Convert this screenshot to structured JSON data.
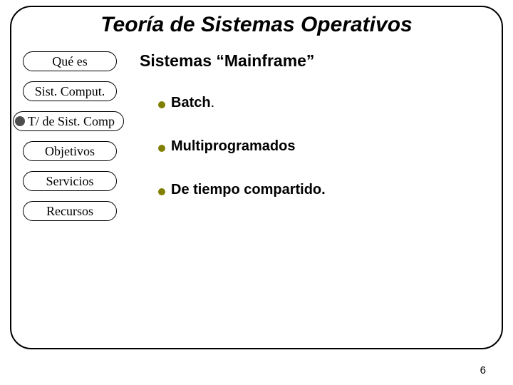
{
  "colors": {
    "background": "#ffffff",
    "border": "#000000",
    "text": "#000000",
    "nav_dot": "#4d4d4d",
    "bullet_dot": "#808000"
  },
  "title": "Teoría de Sistemas Operativos",
  "nav": {
    "items": [
      {
        "label": "Qué es",
        "special": false
      },
      {
        "label": "Sist. Comput.",
        "special": false
      },
      {
        "label": "T/ de Sist. Comp",
        "special": true
      },
      {
        "label": "Objetivos",
        "special": false
      },
      {
        "label": "Servicios",
        "special": false
      },
      {
        "label": "Recursos",
        "special": false
      }
    ]
  },
  "content": {
    "subtitle": "Sistemas “Mainframe”",
    "bullets": [
      {
        "main": "Batch",
        "suffix": "."
      },
      {
        "main": "Multiprogramados",
        "suffix": ""
      },
      {
        "main": "De tiempo compartido.",
        "suffix": ""
      }
    ]
  },
  "page_number": "6"
}
